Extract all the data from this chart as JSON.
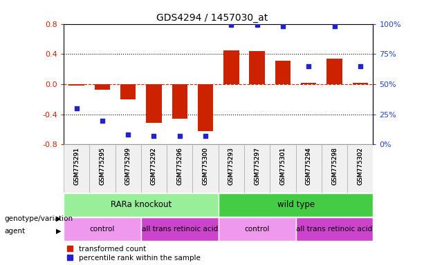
{
  "title": "GDS4294 / 1457030_at",
  "samples": [
    "GSM775291",
    "GSM775295",
    "GSM775299",
    "GSM775292",
    "GSM775296",
    "GSM775300",
    "GSM775293",
    "GSM775297",
    "GSM775301",
    "GSM775294",
    "GSM775298",
    "GSM775302"
  ],
  "transformed_counts": [
    -0.02,
    -0.07,
    -0.2,
    -0.51,
    -0.46,
    -0.62,
    0.45,
    0.44,
    0.31,
    0.02,
    0.34,
    0.02
  ],
  "percentile_ranks": [
    30,
    20,
    8,
    7,
    7,
    7,
    99,
    99,
    98,
    65,
    98,
    65
  ],
  "bar_color": "#cc2200",
  "dot_color": "#2222cc",
  "ylim_left": [
    -0.8,
    0.8
  ],
  "ylim_right": [
    0,
    100
  ],
  "yticks_left": [
    -0.8,
    -0.4,
    0.0,
    0.4,
    0.8
  ],
  "yticks_right": [
    0,
    25,
    50,
    75,
    100
  ],
  "ytick_labels_right": [
    "0%",
    "25%",
    "50%",
    "75%",
    "100%"
  ],
  "genotype_groups": [
    {
      "label": "RARa knockout",
      "start": 0,
      "end": 6,
      "color": "#99ee99"
    },
    {
      "label": "wild type",
      "start": 6,
      "end": 12,
      "color": "#44cc44"
    }
  ],
  "agent_groups": [
    {
      "label": "control",
      "start": 0,
      "end": 3,
      "color": "#ee99ee"
    },
    {
      "label": "all trans retinoic acid",
      "start": 3,
      "end": 6,
      "color": "#cc44cc"
    },
    {
      "label": "control",
      "start": 6,
      "end": 9,
      "color": "#ee99ee"
    },
    {
      "label": "all trans retinoic acid",
      "start": 9,
      "end": 12,
      "color": "#cc44cc"
    }
  ],
  "legend_transformed": "transformed count",
  "legend_percentile": "percentile rank within the sample",
  "label_genotype": "genotype/variation",
  "label_agent": "agent",
  "background_color": "#ffffff",
  "title_fontsize": 10,
  "bar_width": 0.6
}
